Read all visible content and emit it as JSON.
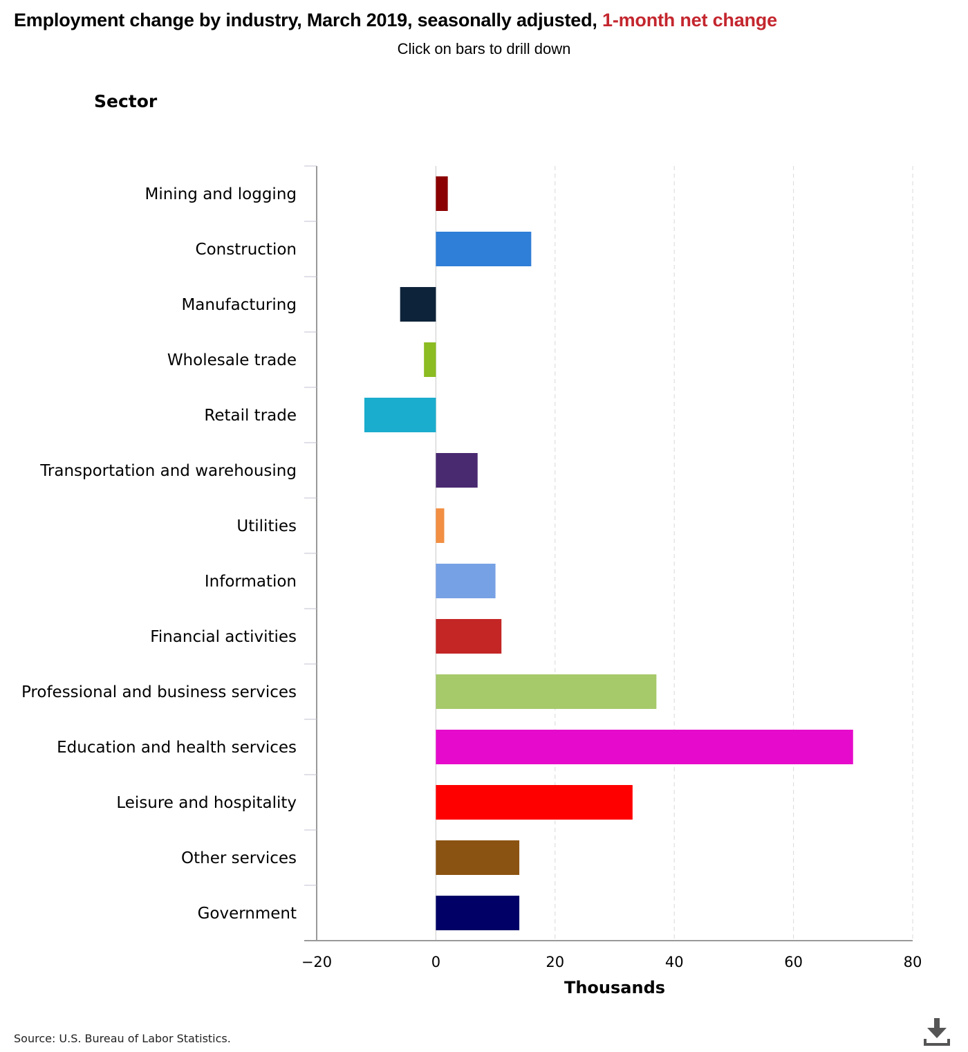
{
  "title": {
    "main": "Employment change by industry, March 2019, seasonally adjusted,",
    "highlight": "1-month net change",
    "highlight_color": "#c4262e"
  },
  "subtitle": "Click on bars to drill down",
  "source": "Source: U.S. Bureau of Labor Statistics.",
  "download_icon": "download-icon",
  "chart_data": {
    "type": "bar",
    "orientation": "horizontal",
    "category_axis_title": "Sector",
    "xlabel": "Thousands",
    "xlim": [
      -20,
      80
    ],
    "xticks": [
      -20,
      0,
      20,
      40,
      60,
      80
    ],
    "xtick_labels": [
      "−20",
      "0",
      "20",
      "40",
      "60",
      "80"
    ],
    "grid": "vertical dashed",
    "categories": [
      "Mining and logging",
      "Construction",
      "Manufacturing",
      "Wholesale trade",
      "Retail trade",
      "Transportation and warehousing",
      "Utilities",
      "Information",
      "Financial activities",
      "Professional and business services",
      "Education and health services",
      "Leisure and hospitality",
      "Other services",
      "Government"
    ],
    "values": [
      2,
      16,
      -6,
      -2,
      -12,
      7,
      1.4,
      10,
      11,
      37,
      70,
      33,
      14,
      14
    ],
    "colors": [
      "#8b0000",
      "#2f7ed8",
      "#0d233a",
      "#8bbc21",
      "#1aadce",
      "#492970",
      "#f28f43",
      "#77a1e5",
      "#c42525",
      "#a6c96a",
      "#e60bcc",
      "#ff0000",
      "#8b5311",
      "#000066"
    ]
  }
}
